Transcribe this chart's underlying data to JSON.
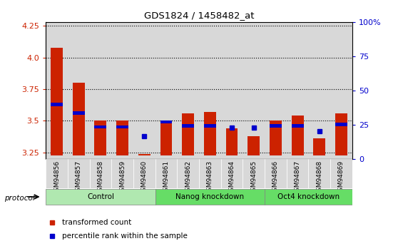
{
  "title": "GDS1824 / 1458482_at",
  "samples": [
    "GSM94856",
    "GSM94857",
    "GSM94858",
    "GSM94859",
    "GSM94860",
    "GSM94861",
    "GSM94862",
    "GSM94863",
    "GSM94864",
    "GSM94865",
    "GSM94866",
    "GSM94867",
    "GSM94868",
    "GSM94869"
  ],
  "red_values": [
    4.08,
    3.8,
    3.5,
    3.5,
    3.235,
    3.49,
    3.56,
    3.57,
    3.44,
    3.38,
    3.5,
    3.54,
    3.36,
    3.56
  ],
  "blue_values": [
    3.63,
    3.56,
    3.45,
    3.45,
    3.375,
    3.49,
    3.46,
    3.46,
    3.445,
    3.445,
    3.46,
    3.46,
    3.42,
    3.47
  ],
  "blue_bar_height": 0.025,
  "ylim_left": [
    3.2,
    4.28
  ],
  "ylim_right": [
    0,
    100
  ],
  "yticks_left": [
    3.25,
    3.5,
    3.75,
    4.0,
    4.25
  ],
  "yticks_right": [
    0,
    25,
    50,
    75,
    100
  ],
  "ytick_labels_right": [
    "0",
    "25",
    "50",
    "75",
    "100%"
  ],
  "group_labels": [
    "Control",
    "Nanog knockdown",
    "Oct4 knockdown"
  ],
  "group_starts": [
    0,
    5,
    10
  ],
  "group_ends": [
    5,
    10,
    14
  ],
  "group_colors": [
    "#b0e8b0",
    "#66dd66",
    "#66dd66"
  ],
  "bar_width": 0.55,
  "bar_color_red": "#cc2200",
  "bar_color_blue": "#0000cc",
  "baseline": 3.225,
  "background_color": "#ffffff",
  "col_bg_color": "#d8d8d8",
  "xlabel_color": "#cc2200",
  "ylabel_right_color": "#0000cc"
}
